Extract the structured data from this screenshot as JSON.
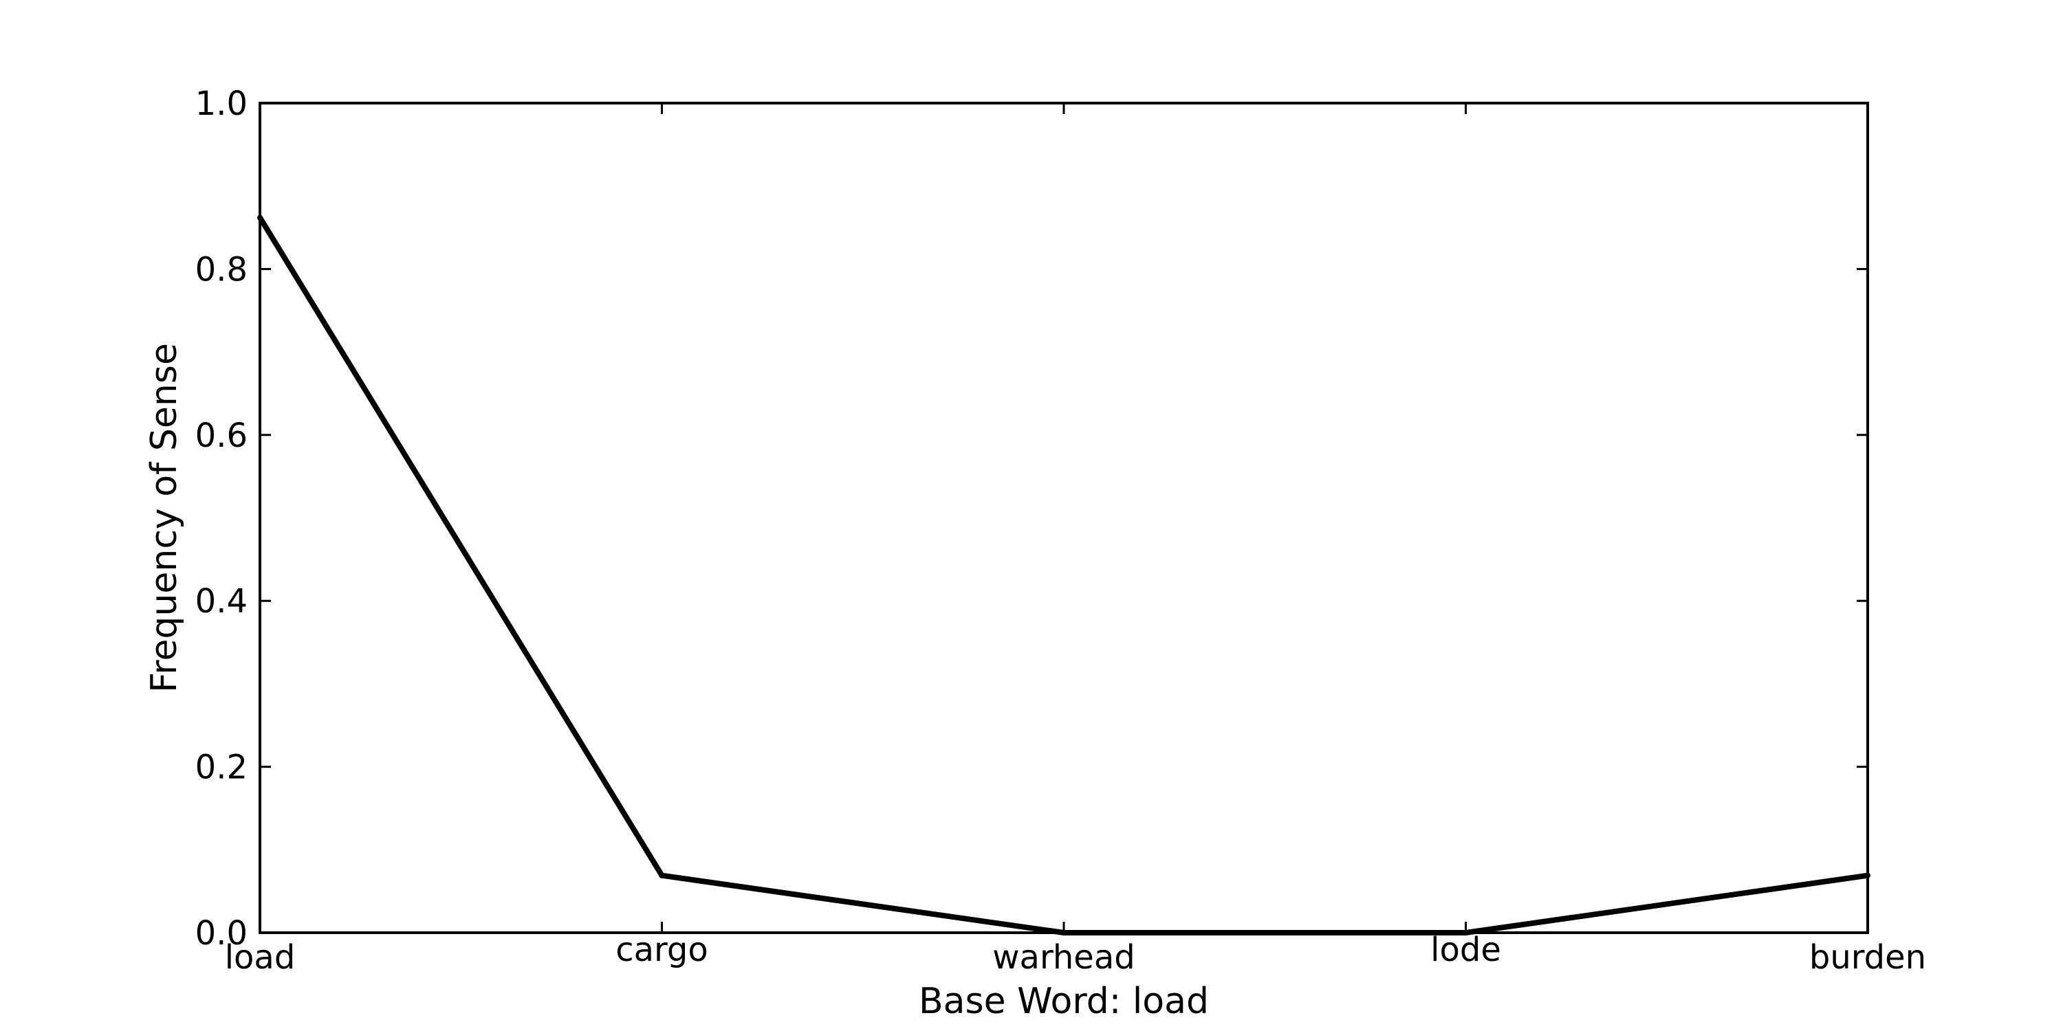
{
  "chart_data": {
    "type": "line",
    "categories": [
      "load",
      "cargo",
      "warhead",
      "lode",
      "burden"
    ],
    "series": [
      {
        "values": [
          0.862,
          0.069,
          0.0,
          0.0,
          0.069
        ]
      }
    ],
    "xlabel": "Base Word: load",
    "ylabel": "Frequency of Sense",
    "ylim": [
      0.0,
      1.0
    ],
    "yticks": [
      "0.0",
      "0.2",
      "0.4",
      "0.6",
      "0.8",
      "1.0"
    ],
    "grid": false,
    "line_color": "#000000"
  }
}
